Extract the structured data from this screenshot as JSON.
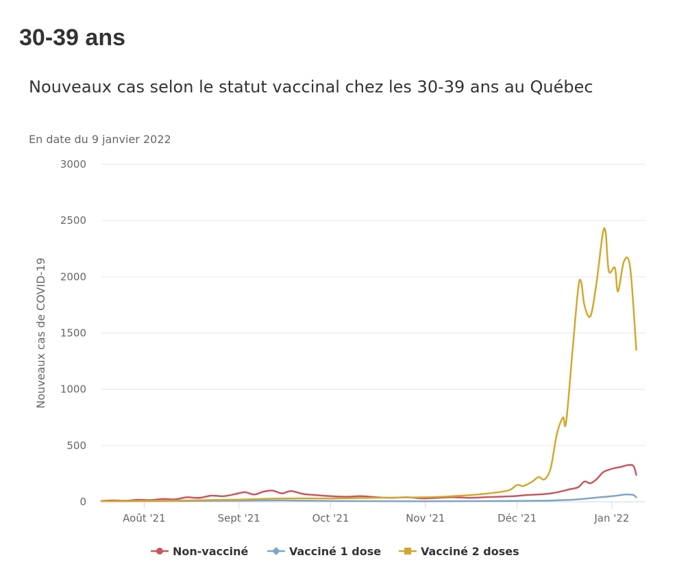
{
  "page": {
    "heading": "30-39 ans"
  },
  "chart_data": {
    "type": "line",
    "title": "Nouveaux cas selon le statut vaccinal chez les 30-39 ans au Québec",
    "subtitle": "En date du 9 janvier 2022",
    "ylabel": "Nouveaux cas de COVID-19",
    "xlabel": "",
    "ylim": [
      0,
      3000
    ],
    "yticks": [
      0,
      500,
      1000,
      1500,
      2000,
      2500,
      3000
    ],
    "xlim": [
      "2021-07-18",
      "2022-01-12"
    ],
    "xticks": [
      {
        "date": "2021-08-01",
        "label": "Août '21"
      },
      {
        "date": "2021-09-01",
        "label": "Sept '21"
      },
      {
        "date": "2021-10-01",
        "label": "Oct '21"
      },
      {
        "date": "2021-11-01",
        "label": "Nov '21"
      },
      {
        "date": "2021-12-01",
        "label": "Déc '21"
      },
      {
        "date": "2022-01-01",
        "label": "Jan '22"
      }
    ],
    "grid": true,
    "legend_position": "bottom",
    "series": [
      {
        "name": "Non-vacciné",
        "color": "#c9565d",
        "marker": "circle",
        "points": [
          [
            "2021-07-18",
            8
          ],
          [
            "2021-07-22",
            12
          ],
          [
            "2021-07-26",
            10
          ],
          [
            "2021-07-30",
            18
          ],
          [
            "2021-08-03",
            15
          ],
          [
            "2021-08-07",
            25
          ],
          [
            "2021-08-11",
            22
          ],
          [
            "2021-08-15",
            40
          ],
          [
            "2021-08-19",
            35
          ],
          [
            "2021-08-23",
            55
          ],
          [
            "2021-08-27",
            50
          ],
          [
            "2021-08-31",
            70
          ],
          [
            "2021-09-03",
            85
          ],
          [
            "2021-09-06",
            65
          ],
          [
            "2021-09-09",
            90
          ],
          [
            "2021-09-12",
            100
          ],
          [
            "2021-09-15",
            75
          ],
          [
            "2021-09-18",
            95
          ],
          [
            "2021-09-22",
            70
          ],
          [
            "2021-09-26",
            60
          ],
          [
            "2021-10-01",
            50
          ],
          [
            "2021-10-06",
            45
          ],
          [
            "2021-10-11",
            50
          ],
          [
            "2021-10-16",
            40
          ],
          [
            "2021-10-21",
            35
          ],
          [
            "2021-10-26",
            40
          ],
          [
            "2021-10-31",
            30
          ],
          [
            "2021-11-05",
            35
          ],
          [
            "2021-11-10",
            40
          ],
          [
            "2021-11-15",
            35
          ],
          [
            "2021-11-20",
            40
          ],
          [
            "2021-11-25",
            45
          ],
          [
            "2021-11-30",
            50
          ],
          [
            "2021-12-04",
            60
          ],
          [
            "2021-12-08",
            65
          ],
          [
            "2021-12-12",
            75
          ],
          [
            "2021-12-15",
            90
          ],
          [
            "2021-12-18",
            110
          ],
          [
            "2021-12-21",
            130
          ],
          [
            "2021-12-23",
            180
          ],
          [
            "2021-12-25",
            165
          ],
          [
            "2021-12-27",
            200
          ],
          [
            "2021-12-29",
            260
          ],
          [
            "2021-12-31",
            285
          ],
          [
            "2022-01-02",
            300
          ],
          [
            "2022-01-04",
            310
          ],
          [
            "2022-01-06",
            325
          ],
          [
            "2022-01-08",
            320
          ],
          [
            "2022-01-09",
            240
          ]
        ]
      },
      {
        "name": "Vacciné 1 dose",
        "color": "#7ca6c8",
        "marker": "diamond",
        "points": [
          [
            "2021-07-18",
            5
          ],
          [
            "2021-08-01",
            6
          ],
          [
            "2021-08-15",
            8
          ],
          [
            "2021-09-01",
            10
          ],
          [
            "2021-09-15",
            12
          ],
          [
            "2021-10-01",
            8
          ],
          [
            "2021-10-15",
            6
          ],
          [
            "2021-11-01",
            5
          ],
          [
            "2021-11-15",
            6
          ],
          [
            "2021-12-01",
            8
          ],
          [
            "2021-12-10",
            10
          ],
          [
            "2021-12-16",
            15
          ],
          [
            "2021-12-20",
            20
          ],
          [
            "2021-12-24",
            30
          ],
          [
            "2021-12-28",
            40
          ],
          [
            "2022-01-01",
            50
          ],
          [
            "2022-01-04",
            60
          ],
          [
            "2022-01-06",
            65
          ],
          [
            "2022-01-08",
            60
          ],
          [
            "2022-01-09",
            40
          ]
        ]
      },
      {
        "name": "Vacciné 2 doses",
        "color": "#d4a72c",
        "marker": "square",
        "points": [
          [
            "2021-07-18",
            5
          ],
          [
            "2021-08-01",
            8
          ],
          [
            "2021-08-15",
            12
          ],
          [
            "2021-09-01",
            20
          ],
          [
            "2021-09-15",
            30
          ],
          [
            "2021-10-01",
            30
          ],
          [
            "2021-10-15",
            35
          ],
          [
            "2021-11-01",
            40
          ],
          [
            "2021-11-10",
            50
          ],
          [
            "2021-11-20",
            70
          ],
          [
            "2021-11-28",
            100
          ],
          [
            "2021-12-01",
            150
          ],
          [
            "2021-12-03",
            140
          ],
          [
            "2021-12-06",
            180
          ],
          [
            "2021-12-08",
            220
          ],
          [
            "2021-12-10",
            200
          ],
          [
            "2021-12-12",
            300
          ],
          [
            "2021-12-14",
            600
          ],
          [
            "2021-12-16",
            750
          ],
          [
            "2021-12-17",
            700
          ],
          [
            "2021-12-19",
            1300
          ],
          [
            "2021-12-21",
            1900
          ],
          [
            "2021-12-22",
            1950
          ],
          [
            "2021-12-23",
            1750
          ],
          [
            "2021-12-25",
            1650
          ],
          [
            "2021-12-27",
            1950
          ],
          [
            "2021-12-29",
            2380
          ],
          [
            "2021-12-30",
            2390
          ],
          [
            "2021-12-31",
            2050
          ],
          [
            "2022-01-02",
            2080
          ],
          [
            "2022-01-03",
            1870
          ],
          [
            "2022-01-05",
            2140
          ],
          [
            "2022-01-07",
            2080
          ],
          [
            "2022-01-09",
            1350
          ]
        ]
      }
    ]
  }
}
